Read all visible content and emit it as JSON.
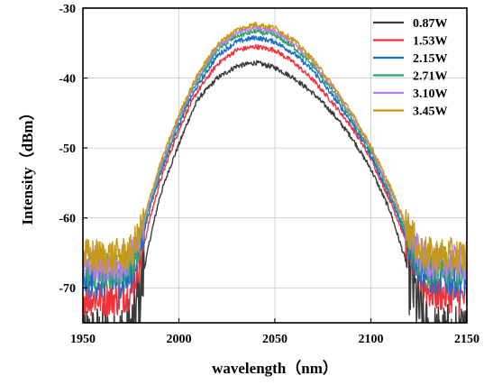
{
  "chart_data": {
    "type": "line",
    "title": "",
    "xlabel": "wavelength（nm）",
    "ylabel": "Intensity（dBm）",
    "xlim": [
      1950,
      2150
    ],
    "ylim": [
      -75,
      -30
    ],
    "x_ticks": [
      1950,
      2000,
      2050,
      2100,
      2150
    ],
    "y_ticks": [
      -30,
      -40,
      -50,
      -60,
      -70
    ],
    "grid": true,
    "legend_position": "top-right",
    "series": [
      {
        "name": "0.87W",
        "color": "#3b3b3b",
        "points": [
          [
            1950,
            -78
          ],
          [
            1968,
            -78
          ],
          [
            1976,
            -76
          ],
          [
            1980,
            -70
          ],
          [
            1985,
            -63
          ],
          [
            1990,
            -57
          ],
          [
            1995,
            -53
          ],
          [
            2000,
            -49.5
          ],
          [
            2005,
            -46
          ],
          [
            2010,
            -43
          ],
          [
            2020,
            -40
          ],
          [
            2030,
            -38.3
          ],
          [
            2040,
            -37.8
          ],
          [
            2050,
            -38.5
          ],
          [
            2060,
            -40
          ],
          [
            2070,
            -42.2
          ],
          [
            2080,
            -45
          ],
          [
            2090,
            -48.5
          ],
          [
            2100,
            -53
          ],
          [
            2110,
            -59
          ],
          [
            2118,
            -66
          ],
          [
            2125,
            -73
          ],
          [
            2130,
            -78
          ],
          [
            2150,
            -78
          ]
        ]
      },
      {
        "name": "1.53W",
        "color": "#f2313b",
        "points": [
          [
            1950,
            -71.5
          ],
          [
            1968,
            -71.5
          ],
          [
            1975,
            -70.5
          ],
          [
            1980,
            -66
          ],
          [
            1985,
            -60
          ],
          [
            1990,
            -55
          ],
          [
            1995,
            -51
          ],
          [
            2000,
            -47.5
          ],
          [
            2005,
            -44.3
          ],
          [
            2010,
            -41.8
          ],
          [
            2020,
            -38
          ],
          [
            2030,
            -36
          ],
          [
            2040,
            -35.5
          ],
          [
            2050,
            -36
          ],
          [
            2060,
            -37.8
          ],
          [
            2070,
            -40.3
          ],
          [
            2080,
            -43.5
          ],
          [
            2090,
            -47
          ],
          [
            2100,
            -51.5
          ],
          [
            2110,
            -57.5
          ],
          [
            2118,
            -63
          ],
          [
            2125,
            -68
          ],
          [
            2130,
            -70.5
          ],
          [
            2150,
            -71.5
          ]
        ]
      },
      {
        "name": "2.15W",
        "color": "#1a6fcc",
        "points": [
          [
            1950,
            -69
          ],
          [
            1968,
            -69
          ],
          [
            1975,
            -68.5
          ],
          [
            1980,
            -64
          ],
          [
            1985,
            -58.5
          ],
          [
            1990,
            -54
          ],
          [
            1995,
            -50.2
          ],
          [
            2000,
            -46.8
          ],
          [
            2005,
            -43.5
          ],
          [
            2010,
            -41
          ],
          [
            2020,
            -36.8
          ],
          [
            2030,
            -34.8
          ],
          [
            2040,
            -34.2
          ],
          [
            2050,
            -34.8
          ],
          [
            2060,
            -36.5
          ],
          [
            2070,
            -39
          ],
          [
            2080,
            -42.5
          ],
          [
            2090,
            -46.3
          ],
          [
            2100,
            -51
          ],
          [
            2110,
            -57
          ],
          [
            2118,
            -62.5
          ],
          [
            2125,
            -67
          ],
          [
            2130,
            -68.5
          ],
          [
            2150,
            -69
          ]
        ]
      },
      {
        "name": "2.71W",
        "color": "#2fa66a",
        "points": [
          [
            1950,
            -67.5
          ],
          [
            1968,
            -67.5
          ],
          [
            1975,
            -67
          ],
          [
            1980,
            -63
          ],
          [
            1985,
            -58
          ],
          [
            1990,
            -53.5
          ],
          [
            1995,
            -49.8
          ],
          [
            2000,
            -46.2
          ],
          [
            2005,
            -43
          ],
          [
            2010,
            -40.3
          ],
          [
            2020,
            -36
          ],
          [
            2030,
            -34
          ],
          [
            2040,
            -33.3
          ],
          [
            2050,
            -33.9
          ],
          [
            2060,
            -35.6
          ],
          [
            2070,
            -38.3
          ],
          [
            2080,
            -41.8
          ],
          [
            2090,
            -45.8
          ],
          [
            2100,
            -50.5
          ],
          [
            2110,
            -56.5
          ],
          [
            2118,
            -61.8
          ],
          [
            2125,
            -66
          ],
          [
            2130,
            -67.3
          ],
          [
            2150,
            -67.5
          ]
        ]
      },
      {
        "name": "3.10W",
        "color": "#b77ee8",
        "points": [
          [
            1950,
            -66.5
          ],
          [
            1968,
            -66.5
          ],
          [
            1975,
            -66
          ],
          [
            1980,
            -62.5
          ],
          [
            1985,
            -57.5
          ],
          [
            1990,
            -53
          ],
          [
            1995,
            -49.3
          ],
          [
            2000,
            -45.8
          ],
          [
            2005,
            -42.6
          ],
          [
            2010,
            -39.8
          ],
          [
            2020,
            -35.5
          ],
          [
            2030,
            -33.5
          ],
          [
            2040,
            -32.8
          ],
          [
            2050,
            -33.3
          ],
          [
            2060,
            -35
          ],
          [
            2070,
            -37.8
          ],
          [
            2080,
            -41.3
          ],
          [
            2090,
            -45.3
          ],
          [
            2100,
            -50
          ],
          [
            2110,
            -56
          ],
          [
            2118,
            -61.2
          ],
          [
            2125,
            -65.2
          ],
          [
            2130,
            -66.3
          ],
          [
            2150,
            -66.5
          ]
        ]
      },
      {
        "name": "3.45W",
        "color": "#c69a12",
        "points": [
          [
            1950,
            -65.5
          ],
          [
            1968,
            -65.5
          ],
          [
            1975,
            -65
          ],
          [
            1980,
            -62
          ],
          [
            1985,
            -57
          ],
          [
            1990,
            -52.5
          ],
          [
            1995,
            -48.8
          ],
          [
            2000,
            -45.3
          ],
          [
            2005,
            -42.2
          ],
          [
            2010,
            -39.4
          ],
          [
            2020,
            -35.2
          ],
          [
            2030,
            -33.1
          ],
          [
            2040,
            -32.3
          ],
          [
            2050,
            -32.8
          ],
          [
            2060,
            -34.6
          ],
          [
            2070,
            -37.4
          ],
          [
            2080,
            -41
          ],
          [
            2090,
            -45
          ],
          [
            2100,
            -49.7
          ],
          [
            2110,
            -55.5
          ],
          [
            2118,
            -60.7
          ],
          [
            2125,
            -64.6
          ],
          [
            2130,
            -65.3
          ],
          [
            2150,
            -65.5
          ]
        ]
      }
    ]
  }
}
